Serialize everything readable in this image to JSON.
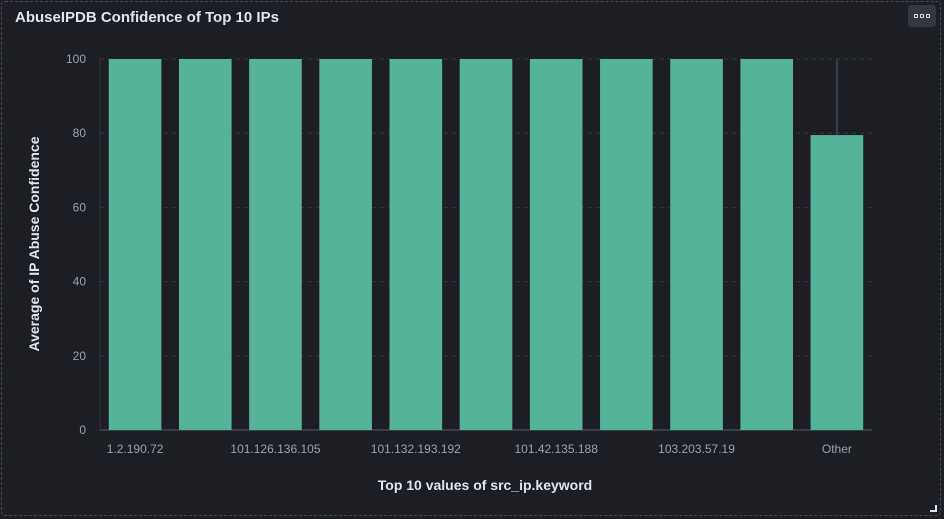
{
  "panel": {
    "title": "AbuseIPDB Confidence of Top 10 IPs",
    "options_icon": "ellipsis-icon",
    "resize_icon": "resize-corner-icon"
  },
  "chart_data": {
    "type": "bar",
    "xlabel": "Top 10 values of src_ip.keyword",
    "ylabel": "Average of IP Abuse Confidence",
    "categories": [
      "1.2.190.72",
      "",
      "101.126.136.105",
      "",
      "101.132.193.192",
      "",
      "101.42.135.188",
      "",
      "103.203.57.19",
      "",
      "Other"
    ],
    "values": [
      100,
      100,
      100,
      100,
      100,
      100,
      100,
      100,
      100,
      100,
      79.5
    ],
    "ylim": [
      0,
      100
    ],
    "yticks": [
      0,
      20,
      40,
      60,
      80,
      100
    ],
    "grid": true,
    "colors": {
      "bar": "#54b399",
      "grid": "#343741",
      "background": "#1d1e24"
    }
  }
}
